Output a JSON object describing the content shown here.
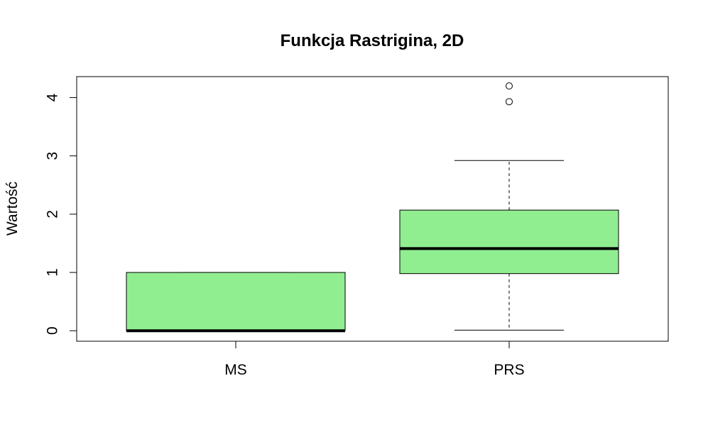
{
  "chart_data": {
    "type": "boxplot",
    "title": "Funkcja Rastrigina, 2D",
    "xlabel": "",
    "ylabel": "Wartość",
    "ylim": [
      -0.18,
      4.36
    ],
    "y_ticks": [
      "0",
      "1",
      "2",
      "3",
      "4"
    ],
    "categories": [
      "MS",
      "PRS"
    ],
    "box_color": "#90EE90",
    "grid": false,
    "boxes": [
      {
        "category": "MS",
        "whisker_low": 0.0,
        "q1": 0.0,
        "median": 0.0,
        "q3": 1.0,
        "whisker_high": 1.0,
        "outliers": []
      },
      {
        "category": "PRS",
        "whisker_low": 0.01,
        "q1": 0.98,
        "median": 1.41,
        "q3": 2.07,
        "whisker_high": 2.92,
        "outliers": [
          3.93,
          4.2
        ]
      }
    ]
  }
}
